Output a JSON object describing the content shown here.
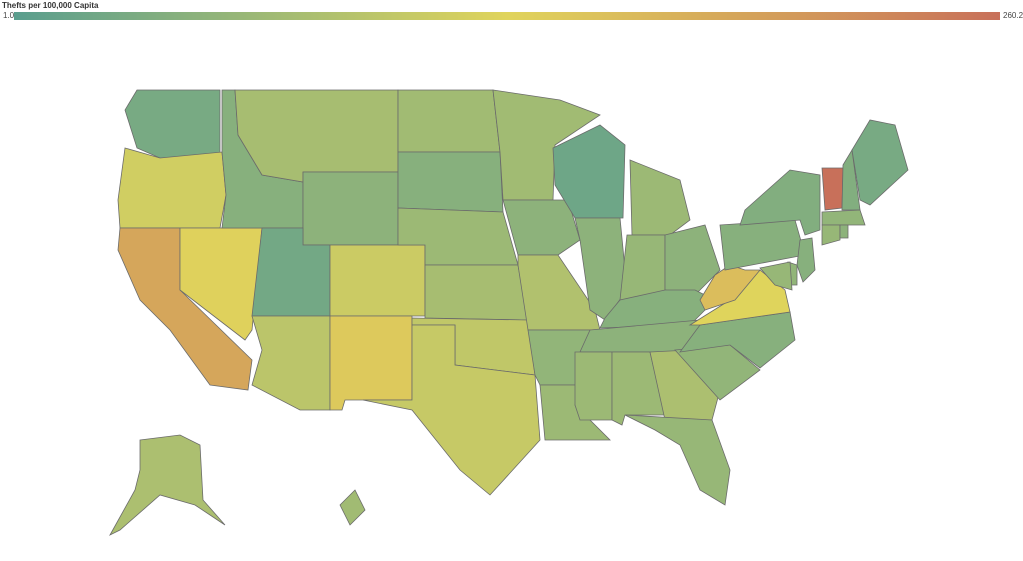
{
  "chart_data": {
    "type": "choropleth",
    "title": "Thefts per 100,000 Capita",
    "scale": [
      {
        "value": 1,
        "label": "1.0"
      },
      260.2
    ],
    "colors": [
      "#5a9e8e",
      "#e0d45c",
      "#c8705a"
    ],
    "values": [
      30,
      115,
      190,
      135,
      45,
      75,
      50,
      25,
      95,
      110,
      145,
      70,
      45,
      65,
      75,
      100,
      105,
      70,
      50,
      85,
      55,
      65,
      20,
      50,
      65,
      60,
      50,
      45,
      50,
      65,
      65,
      80,
      60,
      55,
      45,
      130,
      160,
      45,
      40,
      260.2,
      40,
      30,
      55,
      60,
      50,
      45,
      55,
      60,
      80,
      70
    ]
  }
}
